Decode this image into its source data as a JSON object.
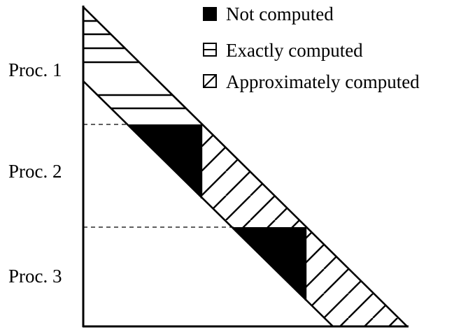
{
  "legend": {
    "not_computed": "Not computed",
    "exactly_computed": "Exactly computed",
    "approximately_computed": "Approximately computed"
  },
  "processes": [
    "Proc. 1",
    "Proc. 2",
    "Proc. 3"
  ],
  "colors": {
    "ink": "#000000",
    "background": "#ffffff"
  }
}
